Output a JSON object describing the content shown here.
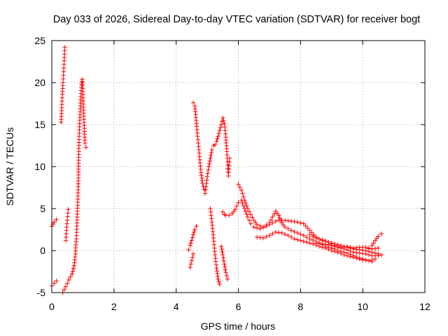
{
  "chart_data": {
    "type": "scatter",
    "title": "Day 033 of 2026, Sidereal Day-to-day VTEC variation (SDTVAR) for receiver bogt",
    "xlabel": "GPS time / hours",
    "ylabel": "SDTVAR / TECUs",
    "xlim": [
      0,
      12
    ],
    "ylim": [
      -5,
      25
    ],
    "x_ticks": [
      0,
      2,
      4,
      6,
      8,
      10,
      12
    ],
    "x_tick_labels": [
      "0",
      "2",
      "4",
      "6",
      "8",
      "10",
      "12"
    ],
    "y_ticks": [
      -5,
      0,
      5,
      10,
      15,
      20,
      25
    ],
    "y_tick_labels": [
      "-5",
      "0",
      "5",
      "10",
      "15",
      "20",
      "25"
    ],
    "grid": true,
    "marker": "+",
    "series_color": "#ff0000",
    "tracks": [
      [
        [
          0.0,
          2.9
        ],
        [
          0.08,
          3.4
        ],
        [
          0.15,
          3.7
        ]
      ],
      [
        [
          0.0,
          -4.2
        ],
        [
          0.08,
          -3.9
        ],
        [
          0.15,
          -3.6
        ]
      ],
      [
        [
          0.3,
          15.3
        ],
        [
          0.32,
          17.0
        ],
        [
          0.34,
          18.6
        ],
        [
          0.36,
          20.0
        ],
        [
          0.38,
          21.3
        ],
        [
          0.4,
          22.6
        ],
        [
          0.42,
          24.2
        ]
      ],
      [
        [
          0.35,
          -5.0
        ],
        [
          0.45,
          -4.3
        ],
        [
          0.55,
          -3.5
        ],
        [
          0.65,
          -2.8
        ],
        [
          0.72,
          -1.8
        ],
        [
          0.76,
          -0.4
        ],
        [
          0.79,
          1.4
        ],
        [
          0.81,
          3.3
        ],
        [
          0.83,
          5.4
        ],
        [
          0.85,
          7.6
        ],
        [
          0.86,
          9.7
        ],
        [
          0.87,
          11.8
        ],
        [
          0.88,
          13.6
        ],
        [
          0.9,
          15.5
        ],
        [
          0.92,
          17.2
        ],
        [
          0.94,
          18.7
        ],
        [
          0.96,
          19.8
        ],
        [
          0.98,
          20.4
        ],
        [
          1.0,
          19.3
        ],
        [
          1.01,
          17.8
        ],
        [
          1.03,
          16.0
        ],
        [
          1.05,
          14.2
        ],
        [
          1.07,
          12.8
        ],
        [
          1.1,
          12.3
        ]
      ],
      [
        [
          0.45,
          1.2
        ],
        [
          0.47,
          2.4
        ],
        [
          0.5,
          3.6
        ],
        [
          0.53,
          4.9
        ]
      ],
      [
        [
          4.4,
          0.1
        ],
        [
          4.45,
          0.6
        ],
        [
          4.5,
          1.2
        ],
        [
          4.55,
          1.9
        ],
        [
          4.6,
          2.5
        ],
        [
          4.65,
          2.9
        ]
      ],
      [
        [
          4.45,
          -2.0
        ],
        [
          4.5,
          -1.2
        ],
        [
          4.55,
          -0.4
        ]
      ],
      [
        [
          4.55,
          17.6
        ],
        [
          4.6,
          17.2
        ],
        [
          4.63,
          16.2
        ],
        [
          4.66,
          14.8
        ],
        [
          4.7,
          13.2
        ],
        [
          4.75,
          11.2
        ],
        [
          4.8,
          9.3
        ],
        [
          4.85,
          8.0
        ],
        [
          4.9,
          7.3
        ],
        [
          4.93,
          6.8
        ],
        [
          4.96,
          7.6
        ],
        [
          5.0,
          8.8
        ],
        [
          5.05,
          10.0
        ],
        [
          5.1,
          11.0
        ],
        [
          5.15,
          12.0
        ],
        [
          5.2,
          12.5
        ],
        [
          5.25,
          12.6
        ],
        [
          5.3,
          13.0
        ],
        [
          5.35,
          13.6
        ],
        [
          5.4,
          14.3
        ],
        [
          5.45,
          15.0
        ],
        [
          5.5,
          15.8
        ],
        [
          5.55,
          15.1
        ],
        [
          5.6,
          13.5
        ],
        [
          5.63,
          11.8
        ],
        [
          5.66,
          10.2
        ],
        [
          5.68,
          8.9
        ],
        [
          5.7,
          10.1
        ],
        [
          5.72,
          11.0
        ]
      ],
      [
        [
          5.1,
          5.0
        ],
        [
          5.15,
          3.4
        ],
        [
          5.2,
          1.5
        ],
        [
          5.25,
          -0.5
        ],
        [
          5.3,
          -2.1
        ],
        [
          5.35,
          -3.4
        ],
        [
          5.4,
          -4.0
        ]
      ],
      [
        [
          5.45,
          0.5
        ],
        [
          5.5,
          -0.5
        ],
        [
          5.55,
          -1.6
        ],
        [
          5.6,
          -2.6
        ],
        [
          5.65,
          -3.4
        ]
      ],
      [
        [
          5.5,
          4.6
        ],
        [
          5.55,
          4.3
        ],
        [
          5.6,
          4.2
        ],
        [
          5.7,
          4.2
        ],
        [
          5.8,
          4.4
        ],
        [
          5.9,
          4.9
        ],
        [
          6.0,
          5.7
        ],
        [
          6.1,
          6.0
        ],
        [
          6.2,
          5.0
        ],
        [
          6.3,
          4.0
        ],
        [
          6.4,
          3.2
        ],
        [
          6.5,
          2.8
        ],
        [
          6.7,
          2.6
        ],
        [
          6.9,
          2.9
        ],
        [
          7.1,
          3.3
        ],
        [
          7.2,
          3.5
        ],
        [
          7.3,
          3.6
        ],
        [
          7.5,
          3.6
        ],
        [
          7.7,
          3.5
        ],
        [
          7.9,
          3.4
        ],
        [
          8.1,
          3.2
        ],
        [
          8.3,
          2.4
        ],
        [
          8.5,
          1.6
        ],
        [
          8.7,
          1.2
        ],
        [
          8.9,
          1.0
        ],
        [
          9.1,
          0.8
        ],
        [
          9.3,
          0.6
        ],
        [
          9.5,
          0.4
        ],
        [
          9.7,
          0.2
        ],
        [
          9.9,
          0.1
        ],
        [
          10.1,
          0.0
        ],
        [
          10.3,
          -0.2
        ],
        [
          10.5,
          -0.4
        ],
        [
          10.6,
          -0.5
        ]
      ],
      [
        [
          6.0,
          7.9
        ],
        [
          6.1,
          7.2
        ],
        [
          6.2,
          6.0
        ],
        [
          6.3,
          5.0
        ],
        [
          6.4,
          4.3
        ],
        [
          6.5,
          3.6
        ],
        [
          6.6,
          3.1
        ],
        [
          6.8,
          2.8
        ],
        [
          7.0,
          3.3
        ],
        [
          7.1,
          4.0
        ],
        [
          7.2,
          4.7
        ],
        [
          7.3,
          4.2
        ],
        [
          7.4,
          3.3
        ],
        [
          7.5,
          2.8
        ],
        [
          7.7,
          2.4
        ],
        [
          7.9,
          2.1
        ],
        [
          8.1,
          1.8
        ],
        [
          8.3,
          1.4
        ],
        [
          8.5,
          1.1
        ],
        [
          8.7,
          0.8
        ],
        [
          8.9,
          0.7
        ],
        [
          9.1,
          0.5
        ],
        [
          9.3,
          0.3
        ],
        [
          9.5,
          0.1
        ],
        [
          9.7,
          -0.2
        ],
        [
          9.9,
          -0.3
        ],
        [
          10.1,
          -0.4
        ],
        [
          10.3,
          -0.6
        ],
        [
          10.5,
          -0.6
        ]
      ],
      [
        [
          6.6,
          1.6
        ],
        [
          6.8,
          1.5
        ],
        [
          7.0,
          1.8
        ],
        [
          7.2,
          2.2
        ],
        [
          7.4,
          2.1
        ],
        [
          7.6,
          1.8
        ],
        [
          7.8,
          1.4
        ],
        [
          8.0,
          1.2
        ],
        [
          8.2,
          1.0
        ],
        [
          8.4,
          0.8
        ],
        [
          8.6,
          0.5
        ],
        [
          8.8,
          0.3
        ],
        [
          9.0,
          0.0
        ],
        [
          9.2,
          -0.2
        ],
        [
          9.4,
          -0.5
        ],
        [
          9.6,
          -0.7
        ],
        [
          9.8,
          -0.9
        ],
        [
          10.0,
          -1.1
        ],
        [
          10.2,
          -1.2
        ],
        [
          10.4,
          -1.0
        ]
      ],
      [
        [
          8.3,
          1.9
        ],
        [
          8.5,
          1.5
        ],
        [
          8.7,
          1.3
        ],
        [
          8.9,
          1.0
        ],
        [
          9.1,
          0.6
        ],
        [
          9.3,
          0.4
        ],
        [
          9.5,
          0.5
        ],
        [
          9.7,
          0.3
        ],
        [
          9.9,
          0.4
        ],
        [
          10.1,
          0.4
        ],
        [
          10.3,
          0.2
        ],
        [
          10.5,
          0.3
        ]
      ],
      [
        [
          8.5,
          0.9
        ],
        [
          8.7,
          0.7
        ],
        [
          8.9,
          0.4
        ],
        [
          9.1,
          0.2
        ],
        [
          9.3,
          -0.1
        ],
        [
          9.5,
          -0.3
        ],
        [
          9.7,
          -0.6
        ],
        [
          9.9,
          -0.9
        ],
        [
          10.1,
          -1.1
        ],
        [
          10.3,
          -1.3
        ]
      ],
      [
        [
          10.2,
          0.2
        ],
        [
          10.3,
          0.6
        ],
        [
          10.4,
          1.2
        ],
        [
          10.5,
          1.7
        ],
        [
          10.6,
          2.0
        ]
      ]
    ]
  }
}
